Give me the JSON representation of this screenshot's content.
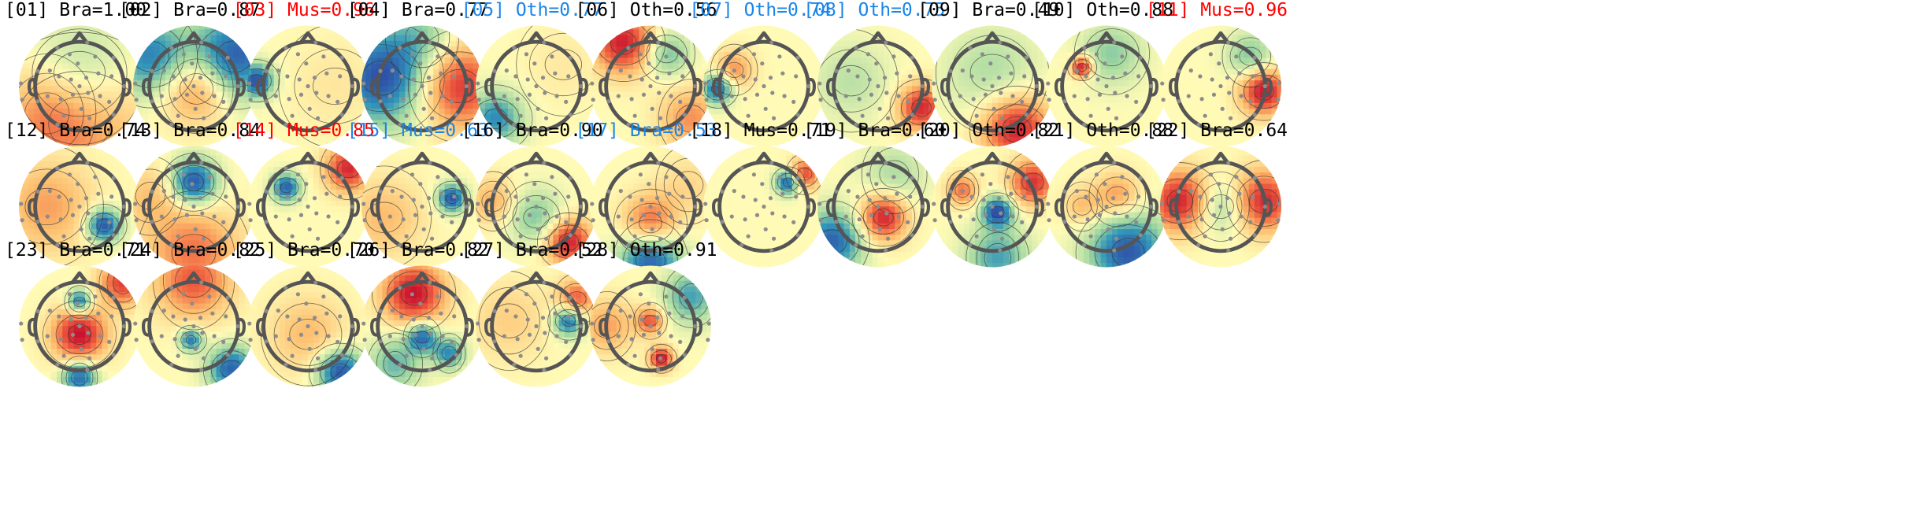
{
  "colors": {
    "default": "#000000",
    "flag_red": "#ff0000",
    "flag_blue": "#1a86e8",
    "electrode": "#8c8c8c",
    "head": "#555555",
    "contour": "#333333",
    "scale_low": "#2f4fa8",
    "scale_mid": "#fffbb6",
    "scale_high": "#c8102e"
  },
  "components": [
    {
      "label": "[01] Bra=1.00",
      "color": "default",
      "blobs": [
        [
          0.0,
          -0.7,
          0.95,
          0.5
        ],
        [
          0.0,
          0.25,
          0.7,
          -0.45
        ],
        [
          -0.6,
          -0.5,
          0.6,
          0.3
        ]
      ]
    },
    {
      "label": "[02] Bra=0.87",
      "color": "default",
      "blobs": [
        [
          0.75,
          0.55,
          0.55,
          -0.95
        ],
        [
          -0.8,
          0.55,
          0.5,
          -0.75
        ],
        [
          0.05,
          -0.05,
          0.45,
          0.6
        ]
      ]
    },
    {
      "label": "[03] Mus=0.96",
      "color": "flag_red",
      "blobs": [
        [
          -0.95,
          0.1,
          0.22,
          -1.0
        ],
        [
          0.5,
          0.0,
          0.6,
          0.12
        ]
      ]
    },
    {
      "label": "[04] Bra=0.77",
      "color": "default",
      "blobs": [
        [
          -0.75,
          0.15,
          0.6,
          -1.0
        ],
        [
          0.7,
          0.0,
          0.55,
          0.85
        ],
        [
          0.0,
          0.9,
          0.45,
          -0.35
        ]
      ]
    },
    {
      "label": "[05] Oth=0.77",
      "color": "flag_blue",
      "blobs": [
        [
          -0.75,
          -0.6,
          0.35,
          -0.7
        ],
        [
          0.5,
          0.4,
          0.5,
          0.1
        ]
      ]
    },
    {
      "label": "[06] Oth=0.56",
      "color": "default",
      "blobs": [
        [
          -0.5,
          0.8,
          0.4,
          0.95
        ],
        [
          0.3,
          0.6,
          0.3,
          -0.5
        ],
        [
          0.75,
          -0.6,
          0.4,
          0.5
        ]
      ]
    },
    {
      "label": "[07] Oth=0.74",
      "color": "flag_blue",
      "blobs": [
        [
          -0.85,
          -0.05,
          0.2,
          -0.9
        ],
        [
          -0.55,
          0.3,
          0.25,
          0.5
        ]
      ]
    },
    {
      "label": "[08] Oth=0.75",
      "color": "flag_blue",
      "blobs": [
        [
          0.8,
          -0.4,
          0.3,
          0.9
        ],
        [
          -0.5,
          0.1,
          0.5,
          -0.25
        ]
      ]
    },
    {
      "label": "[09] Bra=0.49",
      "color": "default",
      "blobs": [
        [
          0.45,
          -0.8,
          0.45,
          0.95
        ],
        [
          0.0,
          0.25,
          0.6,
          -0.3
        ]
      ]
    },
    {
      "label": "[10] Oth=0.88",
      "color": "default",
      "blobs": [
        [
          -0.45,
          0.35,
          0.14,
          1.0
        ],
        [
          0.1,
          0.6,
          0.4,
          -0.4
        ]
      ]
    },
    {
      "label": "[11] Mus=0.96",
      "color": "flag_red",
      "blobs": [
        [
          0.8,
          -0.1,
          0.3,
          1.0
        ],
        [
          0.55,
          0.55,
          0.3,
          -0.45
        ]
      ]
    },
    {
      "label": "[12] Bra=0.74",
      "color": "default",
      "blobs": [
        [
          0.45,
          -0.35,
          0.22,
          -1.0
        ],
        [
          -0.6,
          0.0,
          0.6,
          0.45
        ]
      ]
    },
    {
      "label": "[13] Bra=0.84",
      "color": "default",
      "blobs": [
        [
          0.0,
          0.45,
          0.3,
          -1.0
        ],
        [
          0.0,
          -0.85,
          0.6,
          0.6
        ],
        [
          -0.8,
          0.2,
          0.4,
          0.3
        ]
      ]
    },
    {
      "label": "[14] Mus=0.85",
      "color": "flag_red",
      "blobs": [
        [
          -0.4,
          0.35,
          0.18,
          -0.9
        ],
        [
          0.75,
          0.7,
          0.3,
          0.9
        ]
      ]
    },
    {
      "label": "[15] Mus=0.63",
      "color": "flag_blue",
      "blobs": [
        [
          0.55,
          0.15,
          0.18,
          -1.0
        ],
        [
          -0.7,
          -0.2,
          0.5,
          0.35
        ]
      ]
    },
    {
      "label": "[16] Bra=0.90",
      "color": "default",
      "blobs": [
        [
          0.6,
          -0.65,
          0.3,
          0.95
        ],
        [
          0.0,
          -0.2,
          0.35,
          -0.45
        ],
        [
          -0.8,
          0.1,
          0.3,
          0.4
        ]
      ]
    },
    {
      "label": "[17] Bra=0.53",
      "color": "flag_blue",
      "blobs": [
        [
          0.0,
          -0.3,
          0.35,
          0.7
        ],
        [
          0.0,
          -1.0,
          0.4,
          -0.95
        ],
        [
          0.7,
          0.4,
          0.4,
          0.2
        ]
      ]
    },
    {
      "label": "[18] Mus=0.71",
      "color": "default",
      "blobs": [
        [
          0.45,
          0.45,
          0.16,
          -1.0
        ],
        [
          0.75,
          0.6,
          0.2,
          0.8
        ]
      ]
    },
    {
      "label": "[19] Bra=0.60",
      "color": "default",
      "blobs": [
        [
          0.1,
          -0.2,
          0.3,
          0.95
        ],
        [
          -0.85,
          -0.65,
          0.4,
          -0.9
        ],
        [
          0.3,
          0.6,
          0.4,
          -0.3
        ]
      ]
    },
    {
      "label": "[20] Oth=0.82",
      "color": "default",
      "blobs": [
        [
          0.1,
          -0.1,
          0.2,
          -1.0
        ],
        [
          0.75,
          0.45,
          0.3,
          0.85
        ],
        [
          -0.55,
          0.3,
          0.2,
          0.6
        ],
        [
          0.1,
          -0.95,
          0.4,
          -0.6
        ]
      ]
    },
    {
      "label": "[21] Oth=0.88",
      "color": "default",
      "blobs": [
        [
          0.4,
          -0.85,
          0.5,
          -0.95
        ],
        [
          0.2,
          0.2,
          0.3,
          0.5
        ],
        [
          -0.45,
          0.0,
          0.25,
          0.35
        ]
      ]
    },
    {
      "label": "[22] Bra=0.64",
      "color": "default",
      "blobs": [
        [
          -0.75,
          0.1,
          0.4,
          0.95
        ],
        [
          0.8,
          0.1,
          0.4,
          0.9
        ],
        [
          0.0,
          0.0,
          0.35,
          -0.45
        ]
      ]
    },
    {
      "label": "[23] Bra=0.71",
      "color": "default",
      "blobs": [
        [
          0.0,
          -0.15,
          0.35,
          1.0
        ],
        [
          0.0,
          0.45,
          0.16,
          -0.9
        ],
        [
          0.0,
          -0.95,
          0.22,
          -0.9
        ],
        [
          0.8,
          0.8,
          0.3,
          0.8
        ]
      ]
    },
    {
      "label": "[24] Bra=0.82",
      "color": "default",
      "blobs": [
        [
          -0.05,
          -0.25,
          0.15,
          -0.8
        ],
        [
          0.7,
          -0.8,
          0.3,
          -0.9
        ],
        [
          0.0,
          0.85,
          0.5,
          0.7
        ]
      ]
    },
    {
      "label": "[25] Bra=0.70",
      "color": "default",
      "blobs": [
        [
          0.6,
          -0.85,
          0.3,
          -1.0
        ],
        [
          0.0,
          -0.15,
          0.5,
          0.35
        ]
      ]
    },
    {
      "label": "[26] Bra=0.82",
      "color": "default",
      "blobs": [
        [
          -0.15,
          0.6,
          0.4,
          1.0
        ],
        [
          0.0,
          -0.2,
          0.2,
          -0.9
        ],
        [
          0.5,
          -0.5,
          0.2,
          -0.7
        ],
        [
          -0.5,
          -0.7,
          0.35,
          -0.5
        ]
      ]
    },
    {
      "label": "[27] Bra=0.52",
      "color": "default",
      "blobs": [
        [
          0.6,
          0.1,
          0.2,
          -0.9
        ],
        [
          0.75,
          0.5,
          0.25,
          0.7
        ],
        [
          -0.5,
          0.1,
          0.5,
          0.25
        ]
      ]
    },
    {
      "label": "[28] Oth=0.91",
      "color": "default",
      "blobs": [
        [
          0.2,
          -0.6,
          0.15,
          1.0
        ],
        [
          0.0,
          0.1,
          0.18,
          0.7
        ],
        [
          -0.8,
          0.0,
          0.35,
          0.45
        ],
        [
          0.75,
          0.55,
          0.35,
          -0.6
        ]
      ]
    }
  ]
}
